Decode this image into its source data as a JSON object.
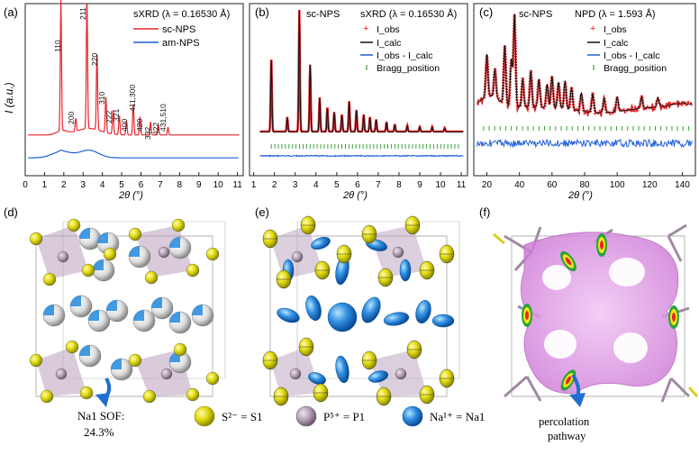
{
  "colors": {
    "red": "#e8242a",
    "blue": "#1f5fd8",
    "black": "#111111",
    "green": "#3aa23a",
    "sulfur": "#e2dc10",
    "phos": "#b2a0b4",
    "sodium": "#2f8fe0",
    "pink": "#d88ee0"
  },
  "panels": {
    "a": {
      "label": "(a)",
      "title": "sXRD (λ = 0.16530 Å)",
      "legend": [
        "sc-NPS",
        "am-NPS"
      ],
      "ylabel": "I (a.u.)",
      "xlabel": "2θ (°)",
      "xticks": [
        "0",
        "1",
        "2",
        "3",
        "4",
        "5",
        "6",
        "7",
        "8",
        "9",
        "10",
        "11"
      ],
      "peaks": [
        "110",
        "211",
        "220",
        "200",
        "310",
        "222",
        "321",
        "400",
        "411,300",
        "420",
        "332",
        "422",
        "431,510"
      ]
    },
    "b": {
      "label": "(b)",
      "sample": "sc-NPS",
      "title": "sXRD (λ = 0.16530 Å)",
      "legend": [
        "I_obs",
        "I_calc",
        "I_obs - I_calc",
        "Bragg_position"
      ],
      "xlabel": "2θ (°)",
      "xticks": [
        "1",
        "2",
        "3",
        "4",
        "5",
        "6",
        "7",
        "8",
        "9",
        "10",
        "11"
      ]
    },
    "c": {
      "label": "(c)",
      "sample": "sc-NPS",
      "title": "NPD (λ = 1.593 Å)",
      "legend": [
        "I_obs",
        "I_calc",
        "I_obs - I_calc",
        "Bragg_position"
      ],
      "xlabel": "2θ (°)",
      "xticks": [
        "20",
        "40",
        "60",
        "80",
        "100",
        "120",
        "140"
      ]
    },
    "d": {
      "label": "(d)",
      "note_line1": "Na1 SOF:",
      "note_line2": "24.3%"
    },
    "e": {
      "label": "(e)"
    },
    "f": {
      "label": "(f)",
      "note_line1": "percolation",
      "note_line2": "pathway"
    }
  },
  "key": {
    "s": "S²⁻ = S1",
    "p": "P⁵⁺ = P1",
    "na": "Na¹⁺ = Na1"
  },
  "chart_data": [
    {
      "type": "line",
      "title": "sXRD (λ = 0.16530 Å)",
      "xlabel": "2θ (°)",
      "ylabel": "I (a.u.)",
      "xlim": [
        0,
        11.3
      ],
      "series": [
        {
          "name": "sc-NPS",
          "peaks": [
            [
              1.85,
              1.0
            ],
            [
              2.62,
              0.1
            ],
            [
              3.2,
              1.0
            ],
            [
              3.72,
              0.6
            ],
            [
              4.18,
              0.28
            ],
            [
              4.55,
              0.18
            ],
            [
              4.88,
              0.15
            ],
            [
              5.25,
              0.11
            ],
            [
              5.6,
              0.24
            ],
            [
              5.95,
              0.14
            ],
            [
              6.5,
              0.1
            ],
            [
              6.9,
              0.08
            ],
            [
              7.4,
              0.06
            ]
          ]
        },
        {
          "name": "am-NPS",
          "broad_peaks": [
            [
              1.9,
              0.05
            ],
            [
              3.3,
              0.06
            ]
          ]
        }
      ]
    },
    {
      "type": "line",
      "title": "sXRD (λ = 0.16530 Å)",
      "sample": "sc-NPS",
      "xlabel": "2θ (°)",
      "xlim": [
        0.8,
        11.3
      ],
      "series": [
        {
          "name": "I_obs"
        },
        {
          "name": "I_calc"
        },
        {
          "name": "I_obs - I_calc"
        },
        {
          "name": "Bragg_position"
        }
      ],
      "peaks": [
        [
          1.85,
          0.62
        ],
        [
          2.62,
          0.12
        ],
        [
          3.2,
          1.0
        ],
        [
          3.72,
          0.55
        ],
        [
          4.18,
          0.28
        ],
        [
          4.55,
          0.2
        ],
        [
          4.88,
          0.16
        ],
        [
          5.25,
          0.14
        ],
        [
          5.6,
          0.25
        ],
        [
          5.95,
          0.18
        ],
        [
          6.3,
          0.14
        ],
        [
          6.6,
          0.12
        ],
        [
          6.9,
          0.1
        ],
        [
          7.4,
          0.08
        ],
        [
          7.8,
          0.06
        ],
        [
          8.4,
          0.05
        ],
        [
          9,
          0.04
        ],
        [
          9.6,
          0.04
        ],
        [
          10.2,
          0.03
        ]
      ]
    },
    {
      "type": "line",
      "title": "NPD (λ = 1.593 Å)",
      "sample": "sc-NPS",
      "xlabel": "2θ (°)",
      "xlim": [
        12,
        148
      ],
      "series": [
        {
          "name": "I_obs"
        },
        {
          "name": "I_calc"
        },
        {
          "name": "I_obs - I_calc"
        },
        {
          "name": "Bragg_position"
        }
      ],
      "peaks": [
        [
          20,
          0.45
        ],
        [
          25,
          0.3
        ],
        [
          31,
          0.62
        ],
        [
          35,
          0.5
        ],
        [
          37,
          0.98
        ],
        [
          42,
          0.3
        ],
        [
          47,
          0.38
        ],
        [
          52,
          0.3
        ],
        [
          57,
          0.25
        ],
        [
          60,
          0.34
        ],
        [
          64,
          0.28
        ],
        [
          68,
          0.3
        ],
        [
          72,
          0.24
        ],
        [
          78,
          0.2
        ],
        [
          85,
          0.2
        ],
        [
          92,
          0.16
        ],
        [
          100,
          0.16
        ],
        [
          115,
          0.12
        ],
        [
          125,
          0.1
        ]
      ]
    }
  ]
}
